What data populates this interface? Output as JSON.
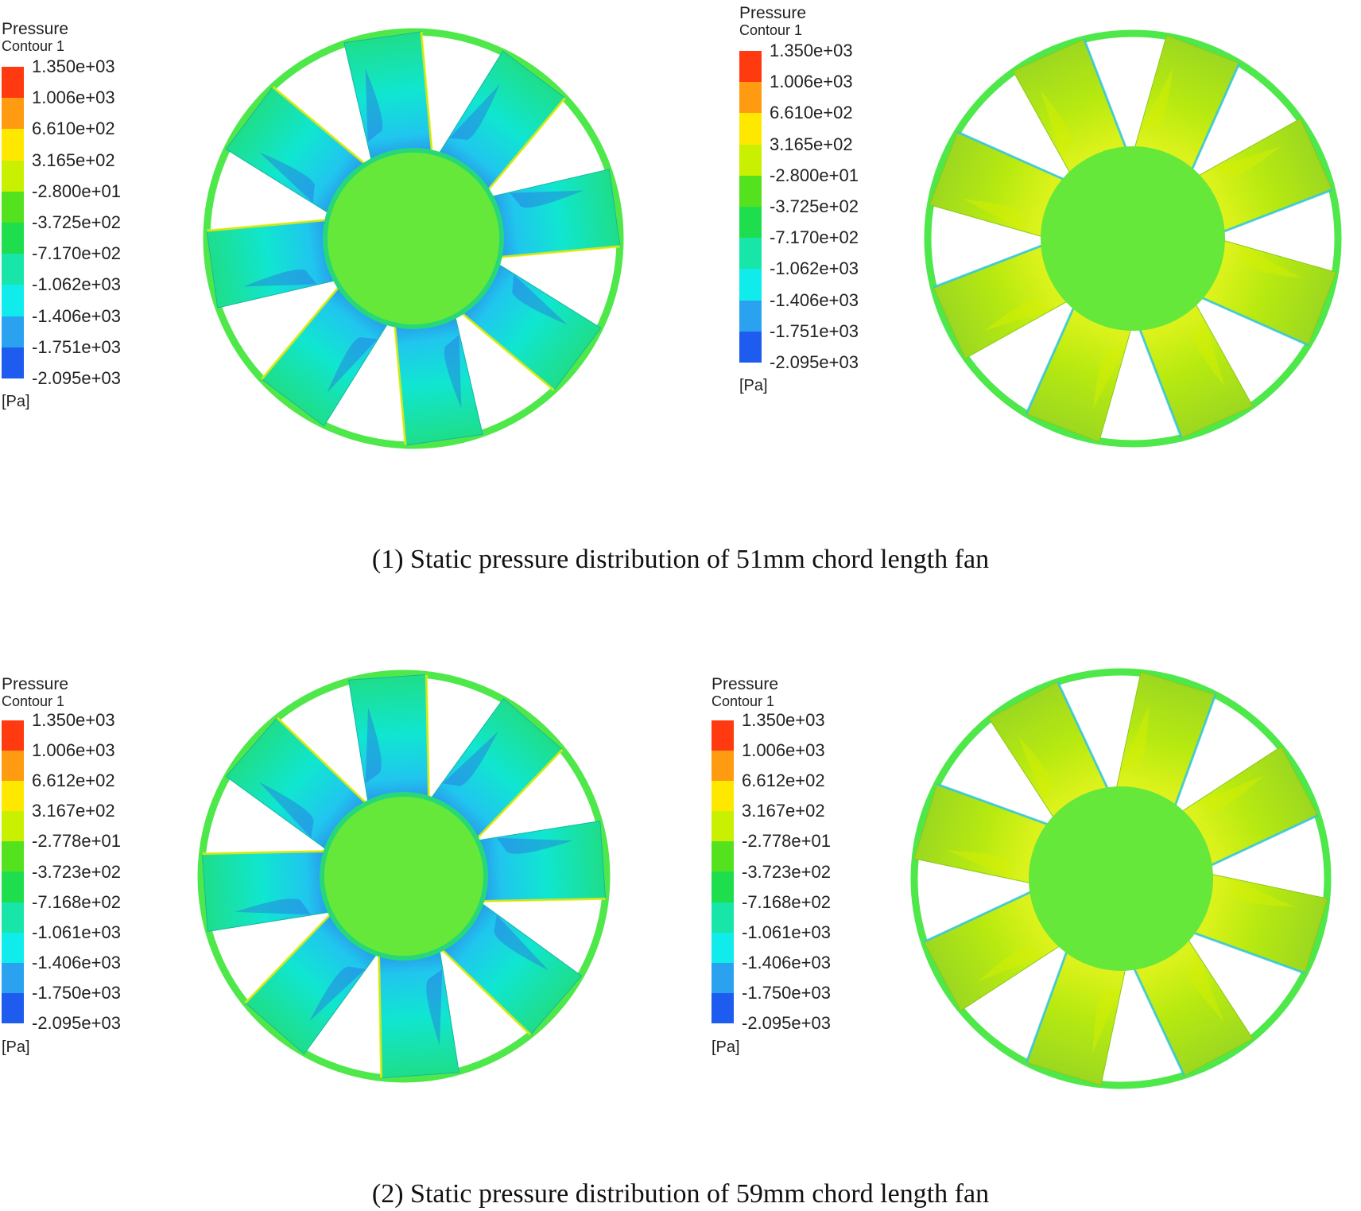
{
  "colors": {
    "scale": [
      "#ff3a10",
      "#ff9b10",
      "#ffe800",
      "#c8f000",
      "#55e21e",
      "#1ede4e",
      "#18e6a8",
      "#10ecec",
      "#2aa2f0",
      "#1e5cf0",
      "#1010f0"
    ],
    "ring_green": "#4ee84a",
    "hub_green": "#66e83a"
  },
  "panels": [
    {
      "legend": {
        "title": "Pressure",
        "subtitle": "Contour 1",
        "ticks": [
          "1.350e+03",
          "1.006e+03",
          "6.610e+02",
          "3.165e+02",
          "-2.800e+01",
          "-3.725e+02",
          "-7.170e+02",
          "-1.062e+03",
          "-1.406e+03",
          "-1.751e+03",
          "-2.095e+03"
        ],
        "unit": "[Pa]"
      },
      "fan": {
        "view": "front",
        "blade_count": 8,
        "blade_tone": "blue-green"
      }
    },
    {
      "legend": {
        "title": "Pressure",
        "subtitle": "Contour 1",
        "ticks": [
          "1.350e+03",
          "1.006e+03",
          "6.610e+02",
          "3.165e+02",
          "-2.800e+01",
          "-3.725e+02",
          "-7.170e+02",
          "-1.062e+03",
          "-1.406e+03",
          "-1.751e+03",
          "-2.095e+03"
        ],
        "unit": "[Pa]"
      },
      "fan": {
        "view": "back",
        "blade_count": 8,
        "blade_tone": "yellow-green"
      }
    },
    {
      "legend": {
        "title": "Pressure",
        "subtitle": "Contour 1",
        "ticks": [
          "1.350e+03",
          "1.006e+03",
          "6.612e+02",
          "3.167e+02",
          "-2.778e+01",
          "-3.723e+02",
          "-7.168e+02",
          "-1.061e+03",
          "-1.406e+03",
          "-1.750e+03",
          "-2.095e+03"
        ],
        "unit": "[Pa]"
      },
      "fan": {
        "view": "front",
        "blade_count": 8,
        "blade_tone": "blue-green"
      }
    },
    {
      "legend": {
        "title": "Pressure",
        "subtitle": "Contour 1",
        "ticks": [
          "1.350e+03",
          "1.006e+03",
          "6.612e+02",
          "3.167e+02",
          "-2.778e+01",
          "-3.723e+02",
          "-7.168e+02",
          "-1.061e+03",
          "-1.406e+03",
          "-1.750e+03",
          "-2.095e+03"
        ],
        "unit": "[Pa]"
      },
      "fan": {
        "view": "back",
        "blade_count": 8,
        "blade_tone": "yellow-green"
      }
    }
  ],
  "captions": [
    "(1) Static pressure distribution of 51mm chord length fan",
    "(2) Static pressure distribution of 59mm chord length fan"
  ]
}
